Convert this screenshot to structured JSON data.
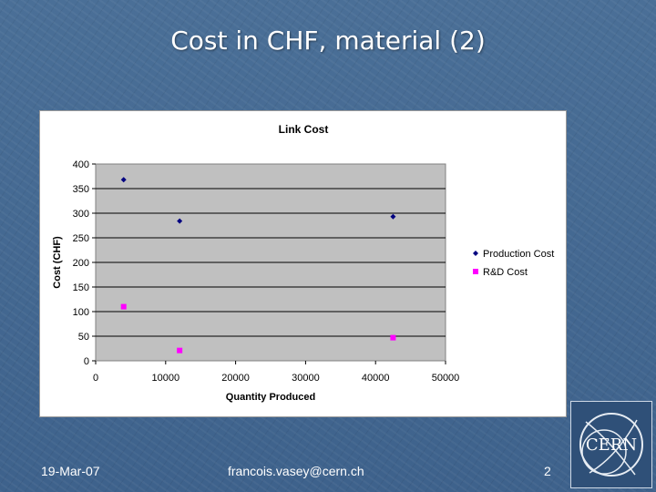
{
  "slide": {
    "title": "Cost in CHF, material (2)",
    "footer_date": "19-Mar-07",
    "footer_email": "francois.vasey@cern.ch",
    "footer_page": "2",
    "logo_text": "CERN"
  },
  "colors": {
    "background": "#3f6590",
    "plot_area": "#c0c0c0",
    "production_cost": "#000080",
    "rd_cost": "#ff00ff"
  },
  "chart_data": {
    "type": "scatter",
    "title": "Link Cost",
    "xlabel": "Quantity Produced",
    "ylabel": "Cost (CHF)",
    "xlim": [
      0,
      50000
    ],
    "ylim": [
      0,
      400
    ],
    "xticks": [
      "0",
      "10000",
      "20000",
      "30000",
      "40000",
      "50000"
    ],
    "yticks": [
      "0",
      "50",
      "100",
      "150",
      "200",
      "250",
      "300",
      "350",
      "400"
    ],
    "grid": "horizontal major lines",
    "legend_position": "right",
    "series": [
      {
        "name": "Production Cost",
        "marker": "diamond",
        "color": "#000080",
        "x": [
          4000,
          12000,
          42500
        ],
        "y": [
          368,
          284,
          293
        ]
      },
      {
        "name": "R&D Cost",
        "marker": "square",
        "color": "#ff00ff",
        "x": [
          4000,
          12000,
          42500
        ],
        "y": [
          110,
          21,
          47
        ]
      }
    ]
  }
}
